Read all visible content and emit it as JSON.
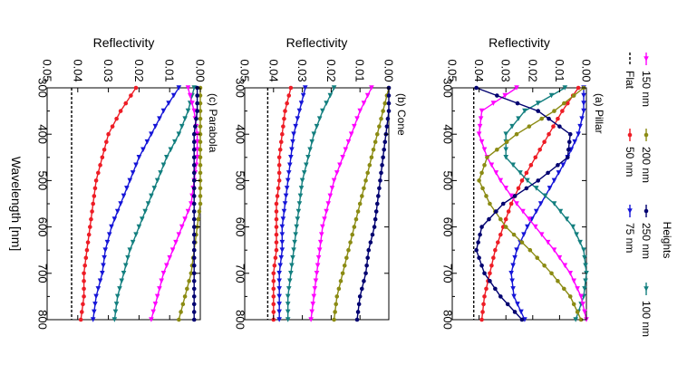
{
  "chart_data": [
    {
      "type": "line",
      "title": "(a) Pillar",
      "ylabel": "Reflectivity",
      "xlabel": "",
      "xlim": [
        300,
        800
      ],
      "ylim": [
        0,
        0.05
      ],
      "x_ticks": [
        "300",
        "400",
        "500",
        "600",
        "700",
        "800"
      ],
      "y_ticks": [
        "0.00",
        "0.01",
        "0.02",
        "0.03",
        "0.04",
        "0.05"
      ],
      "series": [
        {
          "name": "Flat",
          "color": "#000000",
          "dashed": true,
          "marker": "none",
          "x": [
            300,
            800
          ],
          "y": [
            0.042,
            0.042
          ]
        },
        {
          "name": "50 nm",
          "color": "#ee1c25",
          "marker": "circle",
          "x": [
            300,
            350,
            400,
            450,
            500,
            550,
            600,
            650,
            700,
            750,
            800
          ],
          "y": [
            0.003,
            0.009,
            0.014,
            0.019,
            0.024,
            0.028,
            0.031,
            0.034,
            0.036,
            0.038,
            0.039
          ]
        },
        {
          "name": "75 nm",
          "color": "#1515d8",
          "marker": "triangle",
          "x": [
            300,
            350,
            400,
            450,
            500,
            550,
            600,
            650,
            700,
            750,
            800
          ],
          "y": [
            0.001,
            0.001,
            0.003,
            0.007,
            0.012,
            0.017,
            0.022,
            0.026,
            0.028,
            0.027,
            0.023
          ]
        },
        {
          "name": "100 nm",
          "color": "#137f7f",
          "marker": "triangle",
          "x": [
            300,
            350,
            400,
            450,
            500,
            550,
            600,
            650,
            700,
            750,
            800
          ],
          "y": [
            0.008,
            0.023,
            0.03,
            0.03,
            0.022,
            0.012,
            0.005,
            0.001,
            0.0,
            0.001,
            0.004
          ]
        },
        {
          "name": "150 nm",
          "color": "#ff00ff",
          "marker": "triangle",
          "x": [
            300,
            350,
            400,
            450,
            500,
            550,
            600,
            650,
            700,
            750,
            800
          ],
          "y": [
            0.026,
            0.039,
            0.04,
            0.037,
            0.032,
            0.026,
            0.019,
            0.012,
            0.006,
            0.002,
            0.0
          ]
        },
        {
          "name": "200 nm",
          "color": "#8b8b13",
          "marker": "circle",
          "x": [
            300,
            350,
            400,
            450,
            500,
            550,
            600,
            650,
            700,
            750,
            800
          ],
          "y": [
            0.001,
            0.012,
            0.026,
            0.037,
            0.04,
            0.036,
            0.03,
            0.021,
            0.013,
            0.006,
            0.002
          ]
        },
        {
          "name": "250 nm",
          "color": "#000070",
          "marker": "circle",
          "x": [
            300,
            350,
            400,
            450,
            500,
            550,
            600,
            650,
            700,
            750,
            800
          ],
          "y": [
            0.041,
            0.018,
            0.006,
            0.007,
            0.018,
            0.031,
            0.039,
            0.041,
            0.038,
            0.032,
            0.024
          ]
        }
      ]
    },
    {
      "type": "line",
      "title": "(b) Cone",
      "ylabel": "Reflectivity",
      "xlabel": "",
      "xlim": [
        300,
        800
      ],
      "ylim": [
        0,
        0.05
      ],
      "x_ticks": [
        "300",
        "400",
        "500",
        "600",
        "700",
        "800"
      ],
      "y_ticks": [
        "0.00",
        "0.01",
        "0.02",
        "0.03",
        "0.04",
        "0.05"
      ],
      "series": [
        {
          "name": "Flat",
          "color": "#000000",
          "dashed": true,
          "marker": "none",
          "x": [
            300,
            800
          ],
          "y": [
            0.042,
            0.042
          ]
        },
        {
          "name": "50 nm",
          "color": "#ee1c25",
          "marker": "circle",
          "x": [
            300,
            350,
            400,
            450,
            500,
            550,
            600,
            650,
            700,
            750,
            800
          ],
          "y": [
            0.034,
            0.036,
            0.037,
            0.038,
            0.038,
            0.039,
            0.039,
            0.039,
            0.04,
            0.04,
            0.04
          ]
        },
        {
          "name": "75 nm",
          "color": "#1515d8",
          "marker": "triangle",
          "x": [
            300,
            350,
            400,
            450,
            500,
            550,
            600,
            650,
            700,
            750,
            800
          ],
          "y": [
            0.029,
            0.031,
            0.033,
            0.034,
            0.035,
            0.036,
            0.037,
            0.037,
            0.038,
            0.038,
            0.038
          ]
        },
        {
          "name": "100 nm",
          "color": "#137f7f",
          "marker": "triangle",
          "x": [
            300,
            350,
            400,
            450,
            500,
            550,
            600,
            650,
            700,
            750,
            800
          ],
          "y": [
            0.019,
            0.023,
            0.026,
            0.028,
            0.03,
            0.031,
            0.032,
            0.033,
            0.034,
            0.035,
            0.035
          ]
        },
        {
          "name": "150 nm",
          "color": "#ff00ff",
          "marker": "triangle",
          "x": [
            300,
            350,
            400,
            450,
            500,
            550,
            600,
            650,
            700,
            750,
            800
          ],
          "y": [
            0.006,
            0.01,
            0.013,
            0.016,
            0.019,
            0.021,
            0.023,
            0.024,
            0.025,
            0.026,
            0.027
          ]
        },
        {
          "name": "200 nm",
          "color": "#8b8b13",
          "marker": "circle",
          "x": [
            300,
            350,
            400,
            450,
            500,
            550,
            600,
            650,
            700,
            750,
            800
          ],
          "y": [
            0.0,
            0.002,
            0.004,
            0.006,
            0.008,
            0.01,
            0.012,
            0.014,
            0.016,
            0.018,
            0.019
          ]
        },
        {
          "name": "250 nm",
          "color": "#000070",
          "marker": "circle",
          "x": [
            300,
            350,
            400,
            450,
            500,
            550,
            600,
            650,
            700,
            750,
            800
          ],
          "y": [
            0.0,
            0.0,
            0.001,
            0.002,
            0.003,
            0.004,
            0.005,
            0.007,
            0.008,
            0.01,
            0.011
          ]
        }
      ]
    },
    {
      "type": "line",
      "title": "(c) Parabola",
      "ylabel": "Reflectivity",
      "xlabel": "Wavelength [nm]",
      "xlim": [
        300,
        800
      ],
      "ylim": [
        0,
        0.05
      ],
      "x_ticks": [
        "300",
        "400",
        "500",
        "600",
        "700",
        "800"
      ],
      "y_ticks": [
        "0.00",
        "0.01",
        "0.02",
        "0.03",
        "0.04",
        "0.05"
      ],
      "series": [
        {
          "name": "Flat",
          "color": "#000000",
          "dashed": true,
          "marker": "none",
          "x": [
            300,
            800
          ],
          "y": [
            0.042,
            0.042
          ]
        },
        {
          "name": "50 nm",
          "color": "#ee1c25",
          "marker": "circle",
          "x": [
            300,
            350,
            400,
            450,
            500,
            550,
            600,
            650,
            700,
            750,
            800
          ],
          "y": [
            0.021,
            0.026,
            0.03,
            0.032,
            0.034,
            0.035,
            0.036,
            0.037,
            0.038,
            0.038,
            0.039
          ]
        },
        {
          "name": "75 nm",
          "color": "#1515d8",
          "marker": "triangle",
          "x": [
            300,
            350,
            400,
            450,
            500,
            550,
            600,
            650,
            700,
            750,
            800
          ],
          "y": [
            0.007,
            0.012,
            0.016,
            0.02,
            0.023,
            0.026,
            0.029,
            0.031,
            0.032,
            0.034,
            0.035
          ]
        },
        {
          "name": "100 nm",
          "color": "#137f7f",
          "marker": "triangle",
          "x": [
            300,
            350,
            400,
            450,
            500,
            550,
            600,
            650,
            700,
            750,
            800
          ],
          "y": [
            0.002,
            0.004,
            0.007,
            0.011,
            0.014,
            0.017,
            0.02,
            0.023,
            0.025,
            0.027,
            0.028
          ]
        },
        {
          "name": "150 nm",
          "color": "#ff00ff",
          "marker": "triangle",
          "x": [
            300,
            350,
            400,
            450,
            500,
            550,
            600,
            650,
            700,
            750,
            800
          ],
          "y": [
            0.004,
            0.002,
            0.001,
            0.001,
            0.002,
            0.003,
            0.006,
            0.009,
            0.012,
            0.014,
            0.016
          ]
        },
        {
          "name": "200 nm",
          "color": "#8b8b13",
          "marker": "circle",
          "x": [
            300,
            350,
            400,
            450,
            500,
            550,
            600,
            650,
            700,
            750,
            800
          ],
          "y": [
            0.0,
            0.0,
            0.0,
            0.0,
            0.0,
            0.0,
            0.001,
            0.002,
            0.003,
            0.005,
            0.007
          ]
        },
        {
          "name": "250 nm",
          "color": "#000070",
          "marker": "circle",
          "x": [
            300,
            350,
            400,
            450,
            500,
            550,
            600,
            650,
            700,
            750,
            800
          ],
          "y": [
            0.001,
            0.001,
            0.002,
            0.002,
            0.002,
            0.002,
            0.002,
            0.002,
            0.002,
            0.002,
            0.002
          ]
        }
      ]
    }
  ],
  "legend": {
    "title": "Heights",
    "items": [
      {
        "label": "Flat",
        "color": "#000000",
        "marker": "none",
        "dashed": true
      },
      {
        "label": "150 nm",
        "color": "#ff00ff",
        "marker": "triangle"
      },
      {
        "label": "50 nm",
        "color": "#ee1c25",
        "marker": "circle"
      },
      {
        "label": "200 nm",
        "color": "#8b8b13",
        "marker": "circle"
      },
      {
        "label": "75 nm",
        "color": "#1515d8",
        "marker": "triangle"
      },
      {
        "label": "250 nm",
        "color": "#000070",
        "marker": "circle"
      },
      {
        "label": "100 nm",
        "color": "#137f7f",
        "marker": "triangle"
      }
    ]
  }
}
